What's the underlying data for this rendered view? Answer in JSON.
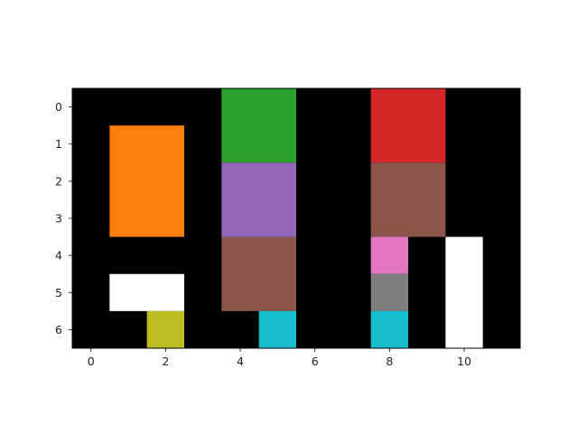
{
  "chart_data": {
    "type": "heatmap",
    "title": "",
    "xlabel": "",
    "ylabel": "",
    "xlim": [
      -0.5,
      11.5
    ],
    "ylim": [
      6.5,
      -0.5
    ],
    "grid": false,
    "background_color": "#000000",
    "x_ticks": [
      0,
      2,
      4,
      6,
      8,
      10
    ],
    "y_ticks": [
      0,
      1,
      2,
      3,
      4,
      5,
      6
    ],
    "x_tick_labels": [
      "0",
      "2",
      "4",
      "6",
      "8",
      "10"
    ],
    "y_tick_labels": [
      "0",
      "1",
      "2",
      "3",
      "4",
      "5",
      "6"
    ],
    "blocks": [
      {
        "color": "#ff7f0e",
        "cols": [
          1,
          2
        ],
        "rows": [
          1,
          3
        ]
      },
      {
        "color": "#2ca02c",
        "cols": [
          4,
          5
        ],
        "rows": [
          0,
          1
        ]
      },
      {
        "color": "#9467bd",
        "cols": [
          4,
          5
        ],
        "rows": [
          2,
          3
        ]
      },
      {
        "color": "#8c564b",
        "cols": [
          4,
          5
        ],
        "rows": [
          4,
          5
        ]
      },
      {
        "color": "#17becf",
        "cols": [
          5,
          5
        ],
        "rows": [
          6,
          6
        ]
      },
      {
        "color": "#d62728",
        "cols": [
          8,
          9
        ],
        "rows": [
          0,
          1
        ]
      },
      {
        "color": "#8c564b",
        "cols": [
          8,
          9
        ],
        "rows": [
          2,
          3
        ]
      },
      {
        "color": "#e377c2",
        "cols": [
          8,
          8
        ],
        "rows": [
          4,
          4
        ]
      },
      {
        "color": "#7f7f7f",
        "cols": [
          8,
          8
        ],
        "rows": [
          5,
          5
        ]
      },
      {
        "color": "#17becf",
        "cols": [
          8,
          8
        ],
        "rows": [
          6,
          6
        ]
      },
      {
        "color": "#ffffff",
        "cols": [
          10,
          10
        ],
        "rows": [
          4,
          6
        ]
      },
      {
        "color": "#ffffff",
        "cols": [
          1,
          2
        ],
        "rows": [
          5,
          5
        ]
      },
      {
        "color": "#bcbd22",
        "cols": [
          2,
          2
        ],
        "rows": [
          6,
          6
        ]
      }
    ]
  }
}
